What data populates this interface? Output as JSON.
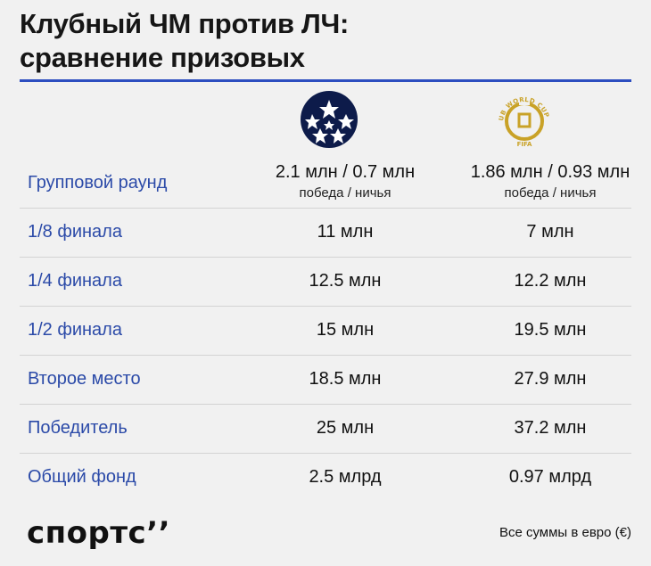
{
  "title": {
    "line1": "Клубный ЧМ против ЛЧ:",
    "line2": "сравнение призовых"
  },
  "logos": {
    "cwc_text": "CLUB WORLD CUP 25",
    "cwc_fifa": "FIFA"
  },
  "rows": [
    {
      "label": "Групповой раунд",
      "ucl": "2.1 млн / 0.7 млн",
      "ucl_sub": "победа / ничья",
      "cwc": "1.86 млн / 0.93 млн",
      "cwc_sub": "победа / ничья"
    },
    {
      "label": "1/8 финала",
      "ucl": "11 млн",
      "cwc": "7 млн"
    },
    {
      "label": "1/4 финала",
      "ucl": "12.5 млн",
      "cwc": "12.2 млн"
    },
    {
      "label": "1/2 финала",
      "ucl": "15 млн",
      "cwc": "19.5 млн"
    },
    {
      "label": "Второе место",
      "ucl": "18.5 млн",
      "cwc": "27.9 млн"
    },
    {
      "label": "Победитель",
      "ucl": "25 млн",
      "cwc": "37.2 млн"
    },
    {
      "label": "Общий фонд",
      "ucl": "2.5 млрд",
      "cwc": "0.97 млрд"
    }
  ],
  "footer": {
    "brand": "спортс’’",
    "note": "Все суммы в евро (€)"
  },
  "colors": {
    "accent": "#2d4ec0",
    "label": "#2b4aa8",
    "gold": "#c9a227",
    "background": "#f1f1f1"
  }
}
